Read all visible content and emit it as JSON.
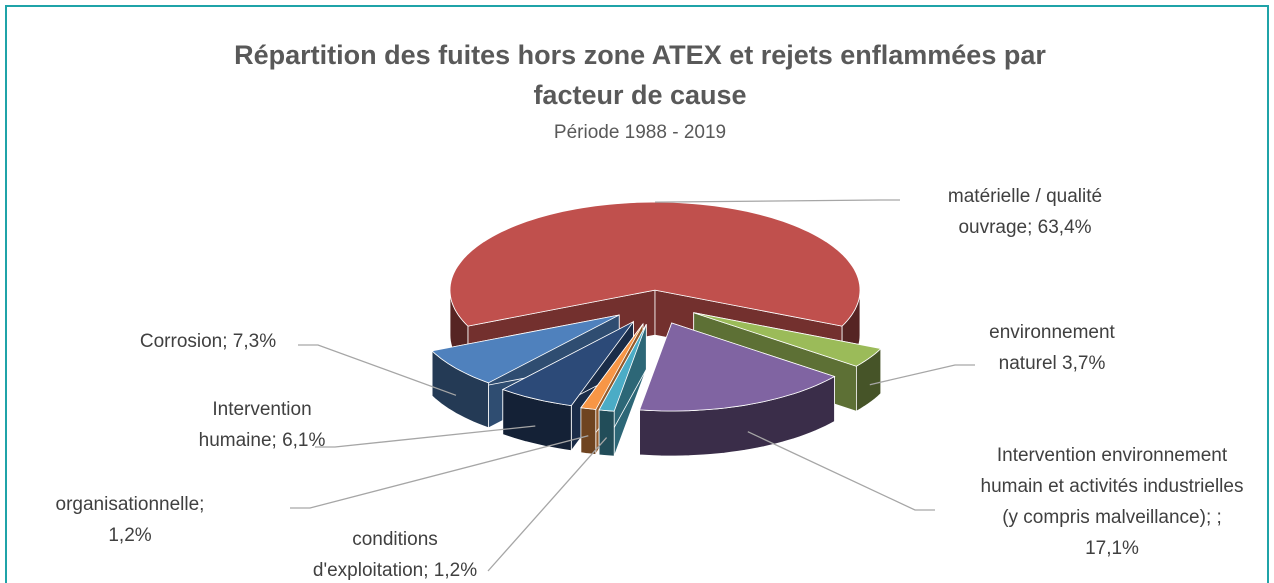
{
  "chart_data": {
    "type": "pie3d",
    "title": [
      "Répartition des fuites hors zone ATEX et rejets enflammées par",
      "facteur de cause"
    ],
    "subtitle": "Période 1988 - 2019",
    "values": [
      63.4,
      3.7,
      17.1,
      1.2,
      1.2,
      6.1,
      7.3
    ],
    "value_labels": [
      [
        "matérielle / qualité",
        "ouvrage; 63,4%"
      ],
      [
        "environnement",
        "naturel 3,7%"
      ],
      [
        "Intervention environnement",
        "humain et activités industrielles",
        "(y compris malveillance); ;",
        "17,1%"
      ],
      [
        "conditions",
        "d'exploitation; 1,2%"
      ],
      [
        "organisationnelle;",
        "1,2%"
      ],
      [
        "Intervention",
        "humaine; 6,1%"
      ],
      [
        "Corrosion; 7,3%"
      ]
    ],
    "colors": [
      "#c0504d",
      "#9bbb59",
      "#8064a2",
      "#4bacc6",
      "#f79646",
      "#2c4a78",
      "#4f81bd"
    ]
  }
}
